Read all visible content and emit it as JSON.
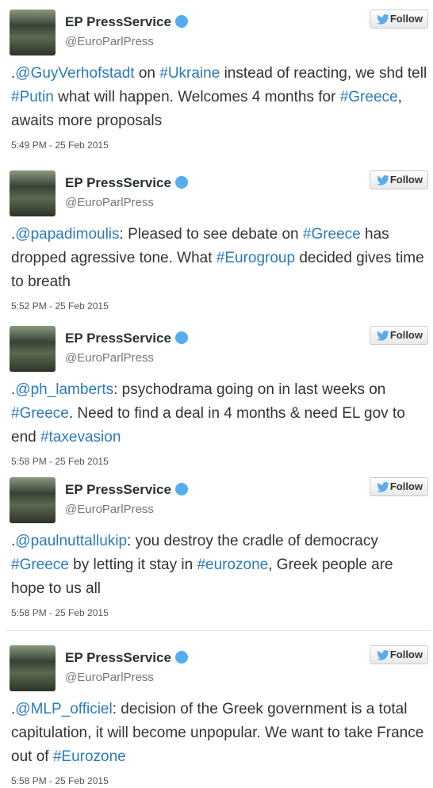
{
  "tweets": [
    {
      "name": "EP PressService",
      "handle": "@EuroParlPress",
      "follow": "Follow",
      "time": "5:49 PM - 25 Feb 2015",
      "text": [
        {
          "text": ".",
          "link": false
        },
        {
          "text": "@GuyVerhofstadt",
          "link": true
        },
        {
          "text": " on ",
          "link": false
        },
        {
          "text": "#Ukraine",
          "link": true
        },
        {
          "text": " instead of reacting, we shd tell ",
          "link": false
        },
        {
          "text": "#Putin",
          "link": true
        },
        {
          "text": " what will happen. Welcomes 4 months for ",
          "link": false
        },
        {
          "text": "#Greece",
          "link": true
        },
        {
          "text": ", awaits more proposals",
          "link": false
        }
      ]
    },
    {
      "name": "EP PressService",
      "handle": "@EuroParlPress",
      "follow": "Follow",
      "time": "5:52 PM - 25 Feb 2015",
      "text": [
        {
          "text": ".",
          "link": false
        },
        {
          "text": "@papadimoulis",
          "link": true
        },
        {
          "text": ": Pleased to see debate on ",
          "link": false
        },
        {
          "text": "#Greece",
          "link": true
        },
        {
          "text": " has dropped agressive tone. What  ",
          "link": false
        },
        {
          "text": "#Eurogroup",
          "link": true
        },
        {
          "text": " decided gives time to breath",
          "link": false
        }
      ]
    },
    {
      "name": "EP PressService",
      "handle": "@EuroParlPress",
      "follow": "Follow",
      "time": "5:58 PM - 25 Feb 2015",
      "text": [
        {
          "text": ".",
          "link": false
        },
        {
          "text": "@ph_lamberts",
          "link": true
        },
        {
          "text": ": psychodrama going on in last weeks on ",
          "link": false
        },
        {
          "text": "#Greece",
          "link": true
        },
        {
          "text": ". Need to find a deal in 4 months & need EL gov to end ",
          "link": false
        },
        {
          "text": "#taxevasion",
          "link": true
        }
      ]
    },
    {
      "name": "EP PressService",
      "handle": "@EuroParlPress",
      "follow": "Follow",
      "time": "5:58 PM - 25 Feb 2015",
      "text": [
        {
          "text": ".",
          "link": false
        },
        {
          "text": "@paulnuttallukip",
          "link": true
        },
        {
          "text": ": you destroy the cradle of democracy ",
          "link": false
        },
        {
          "text": "#Greece",
          "link": true
        },
        {
          "text": " by letting it stay in ",
          "link": false
        },
        {
          "text": "#eurozone",
          "link": true
        },
        {
          "text": ", Greek people are hope to us all",
          "link": false
        }
      ]
    },
    {
      "name": "EP PressService",
      "handle": "@EuroParlPress",
      "follow": "Follow",
      "time": "5:58 PM - 25 Feb 2015",
      "text": [
        {
          "text": ".",
          "link": false
        },
        {
          "text": "@MLP_officiel",
          "link": true
        },
        {
          "text": ": decision of the Greek government is a total capitulation, it will become unpopular. We want to take France out of ",
          "link": false
        },
        {
          "text": "#Eurozone",
          "link": true
        }
      ]
    }
  ]
}
